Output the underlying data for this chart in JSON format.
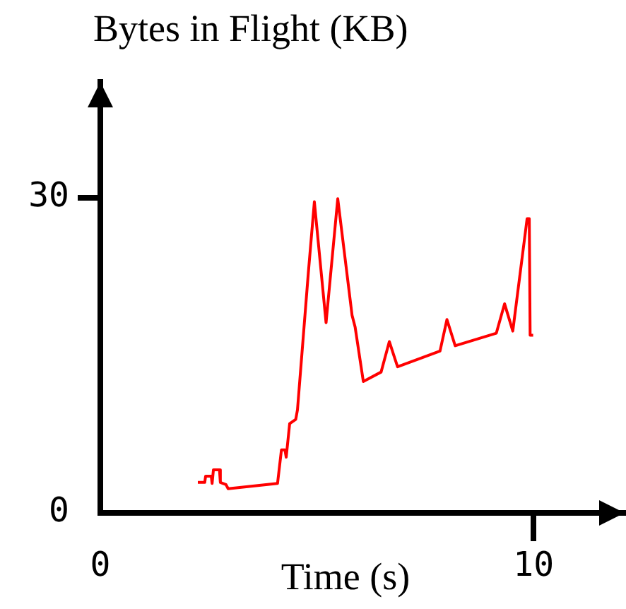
{
  "chart_data": {
    "type": "line",
    "xlabel": "Time (s)",
    "ylabel": "Bytes in Flight (KB)",
    "x": [
      2.25,
      2.41,
      2.43,
      2.56,
      2.58,
      2.61,
      2.75,
      2.77,
      2.9,
      2.95,
      4.09,
      4.18,
      4.26,
      4.29,
      4.37,
      4.51,
      4.55,
      4.8,
      4.94,
      5.21,
      5.48,
      5.81,
      5.88,
      6.07,
      6.48,
      6.67,
      6.86,
      7.84,
      8.0,
      8.19,
      9.14,
      9.33,
      9.52,
      9.85,
      9.9,
      9.92,
      9.99
    ],
    "series": [
      {
        "color": "#ff0000",
        "values": [
          2.9,
          2.9,
          3.5,
          3.5,
          2.8,
          4.1,
          4.1,
          2.9,
          2.7,
          2.3,
          2.8,
          6.0,
          6.0,
          5.3,
          8.5,
          8.9,
          9.8,
          22.8,
          29.6,
          18.1,
          29.9,
          18.8,
          17.7,
          12.5,
          13.4,
          16.3,
          13.9,
          15.4,
          18.4,
          15.9,
          17.1,
          19.9,
          17.3,
          28.0,
          28.0,
          16.9,
          16.9
        ]
      }
    ],
    "xlim": [
      0,
      12.1
    ],
    "ylim": [
      0,
      41
    ],
    "xticks": [
      0,
      10
    ],
    "yticks": [
      0,
      30
    ],
    "grid": false,
    "legend": false,
    "marker": "none",
    "line_style": "solid"
  }
}
